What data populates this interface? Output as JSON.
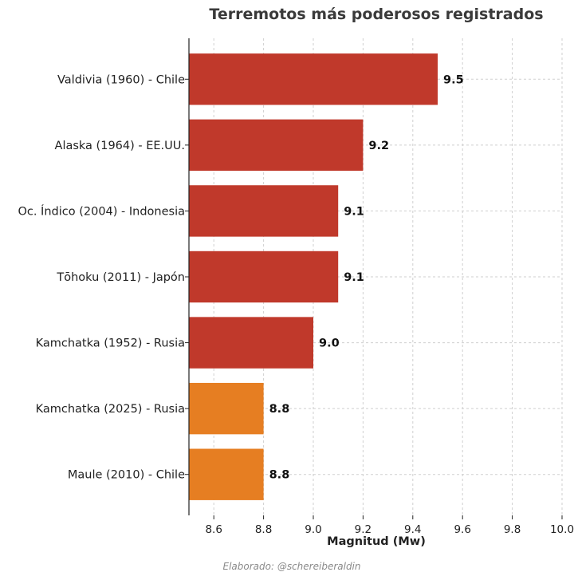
{
  "chart_data": {
    "type": "bar",
    "orientation": "horizontal",
    "title": "Terremotos más poderosos registrados",
    "xlabel": "Magnitud (Mw)",
    "ylabel": "",
    "xlim": [
      8.5,
      10.0
    ],
    "xticks": [
      8.6,
      8.8,
      9.0,
      9.2,
      9.4,
      9.6,
      9.8,
      10.0
    ],
    "xtick_labels": [
      "8.6",
      "8.8",
      "9.0",
      "9.2",
      "9.4",
      "9.6",
      "9.8",
      "10.0"
    ],
    "grid": true,
    "categories": [
      "Valdivia (1960) - Chile",
      "Alaska (1964) - EE.UU.",
      "Oc. Índico (2004) - Indonesia",
      "Tōhoku (2011) - Japón",
      "Kamchatka (1952) - Rusia",
      "Kamchatka (2025) - Rusia",
      "Maule (2010) - Chile"
    ],
    "values": [
      9.5,
      9.2,
      9.1,
      9.1,
      9.0,
      8.8,
      8.8
    ],
    "value_labels": [
      "9.5",
      "9.2",
      "9.1",
      "9.1",
      "9.0",
      "8.8",
      "8.8"
    ],
    "colors": [
      "#c0392b",
      "#c0392b",
      "#c0392b",
      "#c0392b",
      "#c0392b",
      "#e67e22",
      "#e67e22"
    ]
  },
  "footer": {
    "credit": "Elaborado: @schereiberaldin"
  }
}
